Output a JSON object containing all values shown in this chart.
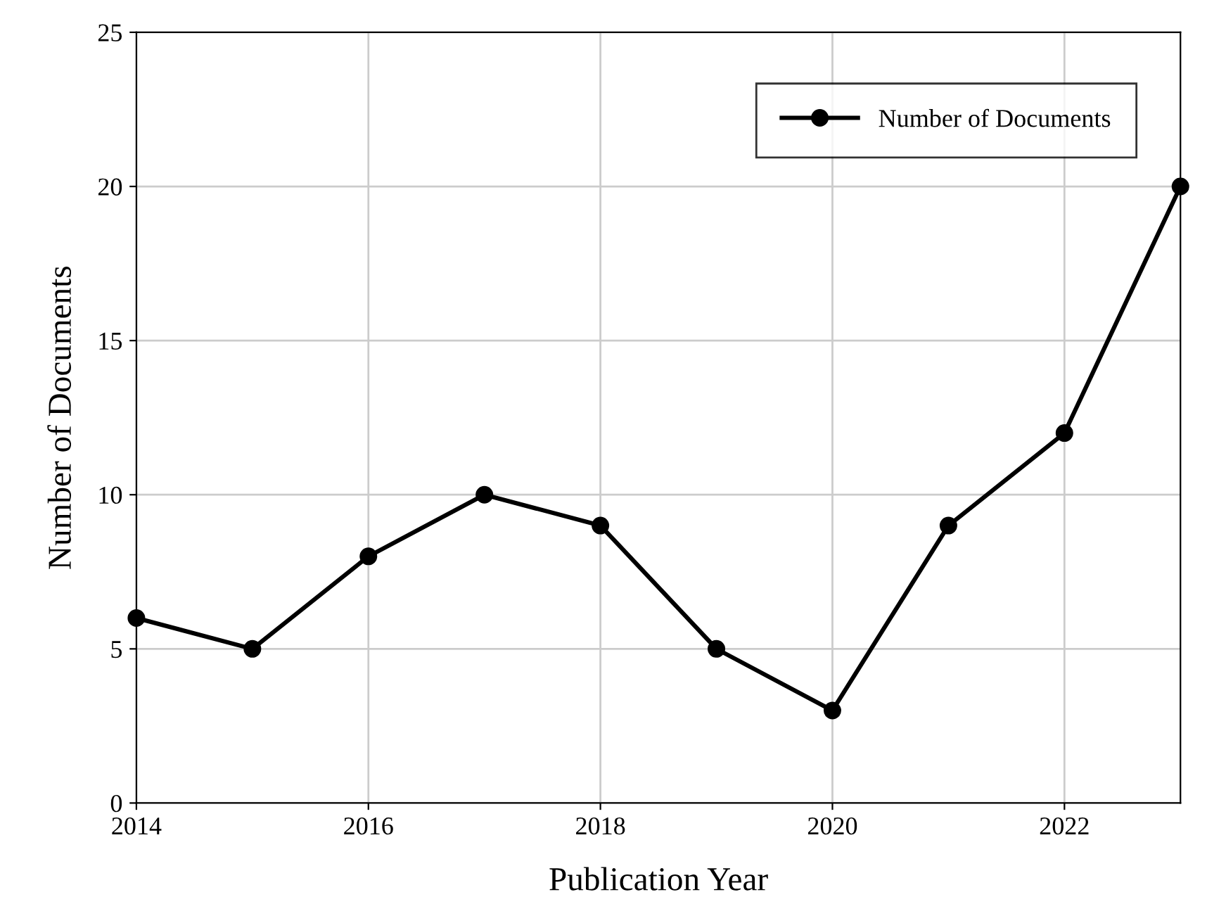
{
  "chart_data": {
    "type": "line",
    "xlabel": "Publication Year",
    "ylabel": "Number of Documents",
    "x": [
      2014,
      2015,
      2016,
      2017,
      2018,
      2019,
      2020,
      2021,
      2022,
      2023
    ],
    "series": [
      {
        "name": "Number of Documents",
        "color": "#000000",
        "values": [
          6,
          5,
          8,
          10,
          9,
          5,
          3,
          9,
          12,
          20
        ]
      }
    ],
    "xlim": [
      2014,
      2023
    ],
    "xticks": [
      2014,
      2016,
      2018,
      2020,
      2022
    ],
    "ylim": [
      0,
      25
    ],
    "yticks": [
      0,
      5,
      10,
      15,
      20,
      25
    ],
    "grid": true,
    "legend": "top right",
    "marker": "circle",
    "line_style": "solid"
  }
}
